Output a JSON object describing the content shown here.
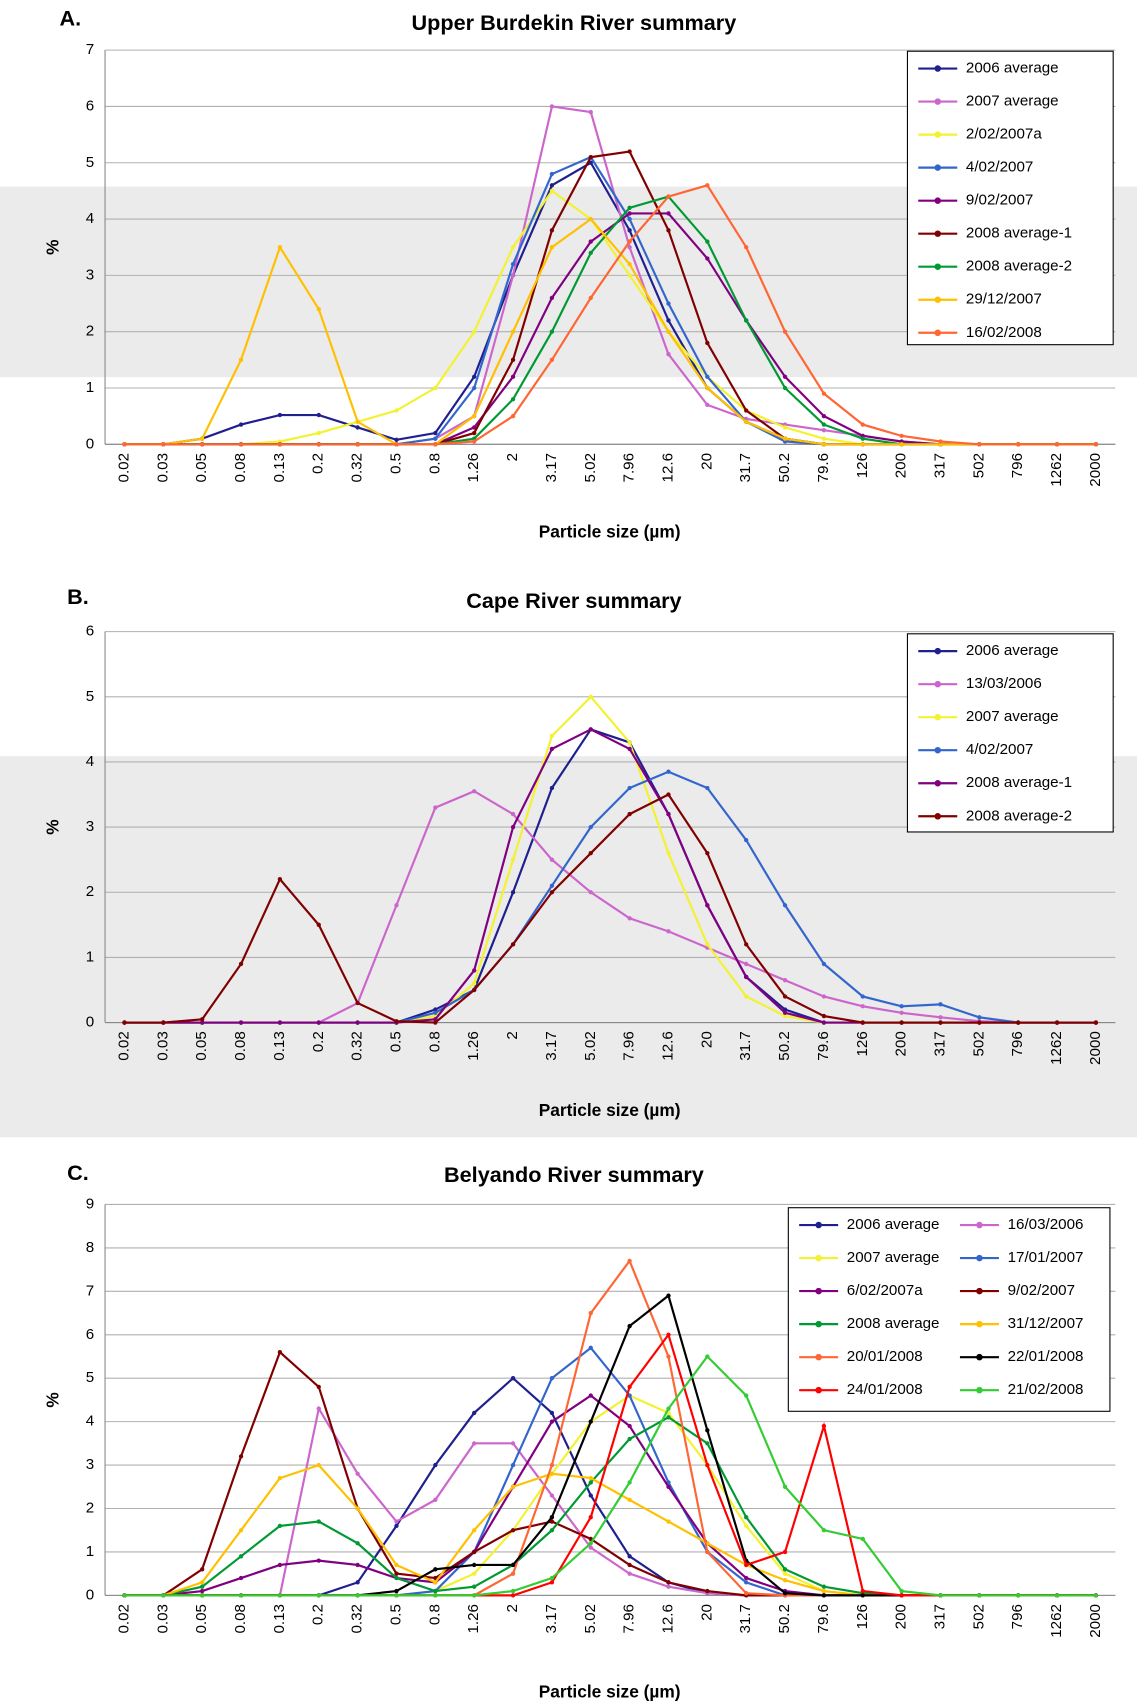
{
  "chart_data": [
    {
      "type": "line",
      "panel_label": "A.",
      "title": "Upper Burdekin River summary",
      "xlabel": "Particle size (µm)",
      "ylabel": "%",
      "categories": [
        "0.02",
        "0.03",
        "0.05",
        "0.08",
        "0.13",
        "0.2",
        "0.32",
        "0.5",
        "0.8",
        "1.26",
        "2",
        "3.17",
        "5.02",
        "7.96",
        "12.6",
        "20",
        "31.7",
        "50.2",
        "79.6",
        "126",
        "200",
        "317",
        "502",
        "796",
        "1262",
        "2000"
      ],
      "ylim": [
        0,
        7
      ],
      "yticks": [
        0,
        1,
        2,
        3,
        4,
        5,
        6,
        7
      ],
      "grid": true,
      "legend": "upper right",
      "legend_columns": 1,
      "series": [
        {
          "name": "2006 average",
          "color": "#1f1f8f",
          "values": [
            0,
            0,
            0.1,
            0.35,
            0.52,
            0.52,
            0.3,
            0.08,
            0.2,
            1.2,
            3.0,
            4.6,
            5.0,
            3.8,
            2.2,
            1.0,
            0.4,
            0.1,
            0,
            0,
            0,
            0,
            0,
            0,
            0,
            0
          ]
        },
        {
          "name": "2007 average",
          "color": "#cc66cc",
          "values": [
            0,
            0,
            0,
            0,
            0,
            0,
            0,
            0,
            0.1,
            0.5,
            3.0,
            6.0,
            5.9,
            3.5,
            1.6,
            0.7,
            0.45,
            0.35,
            0.25,
            0.15,
            0.05,
            0,
            0,
            0,
            0,
            0
          ]
        },
        {
          "name": "2/02/2007a",
          "color": "#f2f230",
          "values": [
            0,
            0,
            0,
            0,
            0.05,
            0.2,
            0.4,
            0.6,
            1.0,
            2.0,
            3.5,
            4.5,
            4.0,
            3.0,
            2.0,
            1.2,
            0.6,
            0.3,
            0.1,
            0,
            0,
            0,
            0,
            0,
            0,
            0
          ]
        },
        {
          "name": "4/02/2007",
          "color": "#3366cc",
          "values": [
            0,
            0,
            0,
            0,
            0,
            0,
            0,
            0,
            0.1,
            1.0,
            3.2,
            4.8,
            5.1,
            4.0,
            2.5,
            1.2,
            0.4,
            0.05,
            0,
            0,
            0,
            0,
            0,
            0,
            0,
            0
          ]
        },
        {
          "name": "9/02/2007",
          "color": "#800080",
          "values": [
            0,
            0,
            0,
            0,
            0,
            0,
            0,
            0,
            0,
            0.3,
            1.2,
            2.6,
            3.6,
            4.1,
            4.1,
            3.3,
            2.2,
            1.2,
            0.5,
            0.15,
            0.05,
            0,
            0,
            0,
            0,
            0
          ]
        },
        {
          "name": "2008 average-1",
          "color": "#800000",
          "values": [
            0,
            0,
            0,
            0,
            0,
            0,
            0,
            0,
            0,
            0.2,
            1.5,
            3.8,
            5.1,
            5.2,
            3.8,
            1.8,
            0.6,
            0.1,
            0,
            0,
            0,
            0,
            0,
            0,
            0,
            0
          ]
        },
        {
          "name": "2008 average-2",
          "color": "#009933",
          "values": [
            0,
            0,
            0,
            0,
            0,
            0,
            0,
            0,
            0,
            0.1,
            0.8,
            2.0,
            3.4,
            4.2,
            4.4,
            3.6,
            2.2,
            1.0,
            0.35,
            0.1,
            0,
            0,
            0,
            0,
            0,
            0
          ]
        },
        {
          "name": "29/12/2007",
          "color": "#ffc000",
          "values": [
            0,
            0,
            0.1,
            1.5,
            3.5,
            2.4,
            0.4,
            0,
            0,
            0.5,
            2.0,
            3.5,
            4.0,
            3.2,
            2.0,
            1.0,
            0.4,
            0.1,
            0,
            0,
            0,
            0,
            0,
            0,
            0,
            0
          ]
        },
        {
          "name": "16/02/2008",
          "color": "#ff6633",
          "values": [
            0,
            0,
            0,
            0,
            0,
            0,
            0,
            0,
            0,
            0.05,
            0.5,
            1.5,
            2.6,
            3.6,
            4.4,
            4.6,
            3.5,
            2.0,
            0.9,
            0.35,
            0.15,
            0.05,
            0,
            0,
            0,
            0
          ]
        }
      ]
    },
    {
      "type": "line",
      "panel_label": "B.",
      "title": "Cape River summary",
      "xlabel": "Particle size (µm)",
      "ylabel": "%",
      "categories": [
        "0.02",
        "0.03",
        "0.05",
        "0.08",
        "0.13",
        "0.2",
        "0.32",
        "0.5",
        "0.8",
        "1.26",
        "2",
        "3.17",
        "5.02",
        "7.96",
        "12.6",
        "20",
        "31.7",
        "50.2",
        "79.6",
        "126",
        "200",
        "317",
        "502",
        "796",
        "1262",
        "2000"
      ],
      "ylim": [
        0,
        6
      ],
      "yticks": [
        0,
        1,
        2,
        3,
        4,
        5,
        6
      ],
      "grid": true,
      "legend": "upper right",
      "legend_columns": 1,
      "series": [
        {
          "name": "2006 average",
          "color": "#1f1f8f",
          "values": [
            0,
            0,
            0,
            0,
            0,
            0,
            0,
            0,
            0.2,
            0.5,
            2.0,
            3.6,
            4.5,
            4.3,
            3.2,
            1.8,
            0.7,
            0.2,
            0,
            0,
            0,
            0,
            0,
            0,
            0,
            0
          ]
        },
        {
          "name": "13/03/2006",
          "color": "#cc66cc",
          "values": [
            0,
            0,
            0,
            0,
            0,
            0,
            0.3,
            1.8,
            3.3,
            3.55,
            3.2,
            2.5,
            2.0,
            1.6,
            1.4,
            1.15,
            0.9,
            0.65,
            0.4,
            0.25,
            0.15,
            0.08,
            0.02,
            0,
            0,
            0
          ]
        },
        {
          "name": "2007 average",
          "color": "#f2f230",
          "values": [
            0,
            0,
            0,
            0,
            0,
            0,
            0,
            0,
            0.1,
            0.6,
            2.5,
            4.4,
            5.0,
            4.3,
            2.6,
            1.2,
            0.4,
            0.1,
            0,
            0,
            0,
            0,
            0,
            0,
            0,
            0
          ]
        },
        {
          "name": "4/02/2007",
          "color": "#3366cc",
          "values": [
            0,
            0,
            0,
            0,
            0,
            0,
            0,
            0,
            0.15,
            0.5,
            1.2,
            2.1,
            3.0,
            3.6,
            3.85,
            3.6,
            2.8,
            1.8,
            0.9,
            0.4,
            0.25,
            0.28,
            0.08,
            0,
            0,
            0
          ]
        },
        {
          "name": "2008 average-1",
          "color": "#800080",
          "values": [
            0,
            0,
            0,
            0,
            0,
            0,
            0,
            0,
            0.05,
            0.8,
            3.0,
            4.2,
            4.5,
            4.2,
            3.2,
            1.8,
            0.7,
            0.15,
            0,
            0,
            0,
            0,
            0,
            0,
            0,
            0
          ]
        },
        {
          "name": "2008 average-2",
          "color": "#800000",
          "values": [
            0,
            0,
            0.05,
            0.9,
            2.2,
            1.5,
            0.3,
            0.02,
            0,
            0.5,
            1.2,
            2.0,
            2.6,
            3.2,
            3.5,
            2.6,
            1.2,
            0.4,
            0.1,
            0,
            0,
            0,
            0,
            0,
            0,
            0
          ]
        }
      ]
    },
    {
      "type": "line",
      "panel_label": "C.",
      "title": "Belyando River summary",
      "xlabel": "Particle size (µm)",
      "ylabel": "%",
      "categories": [
        "0.02",
        "0.03",
        "0.05",
        "0.08",
        "0.13",
        "0.2",
        "0.32",
        "0.5",
        "0.8",
        "1.26",
        "2",
        "3.17",
        "5.02",
        "7.96",
        "12.6",
        "20",
        "31.7",
        "50.2",
        "79.6",
        "126",
        "200",
        "317",
        "502",
        "796",
        "1262",
        "2000"
      ],
      "ylim": [
        0,
        9
      ],
      "yticks": [
        0,
        1,
        2,
        3,
        4,
        5,
        6,
        7,
        8,
        9
      ],
      "grid": true,
      "legend": "upper right",
      "legend_columns": 2,
      "series": [
        {
          "name": "2006 average",
          "color": "#1f1f8f",
          "values": [
            0,
            0,
            0,
            0,
            0,
            0,
            0.3,
            1.6,
            3.0,
            4.2,
            5.0,
            4.2,
            2.3,
            0.9,
            0.3,
            0.05,
            0,
            0,
            0,
            0,
            0,
            0,
            0,
            0,
            0,
            0
          ]
        },
        {
          "name": "16/03/2006",
          "color": "#cc66cc",
          "values": [
            0,
            0,
            0,
            0,
            0,
            4.3,
            2.8,
            1.7,
            2.2,
            3.5,
            3.5,
            2.3,
            1.1,
            0.5,
            0.2,
            0.05,
            0,
            0,
            0,
            0,
            0,
            0,
            0,
            0,
            0,
            0
          ]
        },
        {
          "name": "2007 average",
          "color": "#f2f230",
          "values": [
            0,
            0,
            0,
            0,
            0,
            0,
            0,
            0,
            0.1,
            0.5,
            1.5,
            2.8,
            4.0,
            4.6,
            4.2,
            3.0,
            1.6,
            0.5,
            0.1,
            0,
            0,
            0,
            0,
            0,
            0,
            0
          ]
        },
        {
          "name": "17/01/2007",
          "color": "#3366cc",
          "values": [
            0,
            0,
            0,
            0,
            0,
            0,
            0,
            0,
            0.1,
            1.0,
            3.0,
            5.0,
            5.7,
            4.6,
            2.6,
            1.0,
            0.3,
            0,
            0,
            0,
            0,
            0,
            0,
            0,
            0,
            0
          ]
        },
        {
          "name": "6/02/2007a",
          "color": "#800080",
          "values": [
            0,
            0,
            0.1,
            0.4,
            0.7,
            0.8,
            0.7,
            0.4,
            0.3,
            1.0,
            2.5,
            4.0,
            4.6,
            3.9,
            2.5,
            1.2,
            0.4,
            0.1,
            0,
            0,
            0,
            0,
            0,
            0,
            0,
            0
          ]
        },
        {
          "name": "9/02/2007",
          "color": "#800000",
          "values": [
            0,
            0,
            0.6,
            3.2,
            5.6,
            4.8,
            2.0,
            0.5,
            0.4,
            1.0,
            1.5,
            1.7,
            1.3,
            0.7,
            0.3,
            0.1,
            0,
            0,
            0,
            0,
            0,
            0,
            0,
            0,
            0,
            0
          ]
        },
        {
          "name": "2008 average",
          "color": "#009933",
          "values": [
            0,
            0,
            0.2,
            0.9,
            1.6,
            1.7,
            1.2,
            0.4,
            0.1,
            0.2,
            0.7,
            1.5,
            2.6,
            3.6,
            4.1,
            3.5,
            1.8,
            0.6,
            0.2,
            0.05,
            0,
            0,
            0,
            0,
            0,
            0
          ]
        },
        {
          "name": "31/12/2007",
          "color": "#ffc000",
          "values": [
            0,
            0,
            0.3,
            1.5,
            2.7,
            3.0,
            2.0,
            0.7,
            0.3,
            1.5,
            2.5,
            2.8,
            2.7,
            2.2,
            1.7,
            1.2,
            0.7,
            0.35,
            0.1,
            0,
            0,
            0,
            0,
            0,
            0,
            0
          ]
        },
        {
          "name": "20/01/2008",
          "color": "#ff6633",
          "values": [
            0,
            0,
            0,
            0,
            0,
            0,
            0,
            0,
            0,
            0,
            0.5,
            3.0,
            6.5,
            7.7,
            5.5,
            1.0,
            0.05,
            0,
            0,
            0,
            0,
            0,
            0,
            0,
            0,
            0
          ]
        },
        {
          "name": "22/01/2008",
          "color": "#000000",
          "values": [
            0,
            0,
            0,
            0,
            0,
            0,
            0,
            0.1,
            0.6,
            0.7,
            0.7,
            1.8,
            4.0,
            6.2,
            6.9,
            3.8,
            0.8,
            0.05,
            0,
            0,
            0,
            0,
            0,
            0,
            0,
            0
          ]
        },
        {
          "name": "24/01/2008",
          "color": "#ff0000",
          "values": [
            0,
            0,
            0,
            0,
            0,
            0,
            0,
            0,
            0,
            0,
            0,
            0.3,
            1.8,
            4.8,
            6.0,
            3.0,
            0.7,
            1.0,
            3.9,
            0.1,
            0,
            0,
            0,
            0,
            0,
            0
          ]
        },
        {
          "name": "21/02/2008",
          "color": "#33cc33",
          "values": [
            0,
            0,
            0,
            0,
            0,
            0,
            0,
            0,
            0,
            0,
            0.1,
            0.4,
            1.2,
            2.6,
            4.3,
            5.5,
            4.6,
            2.5,
            1.5,
            1.3,
            0.1,
            0,
            0,
            0,
            0,
            0
          ]
        }
      ]
    }
  ]
}
